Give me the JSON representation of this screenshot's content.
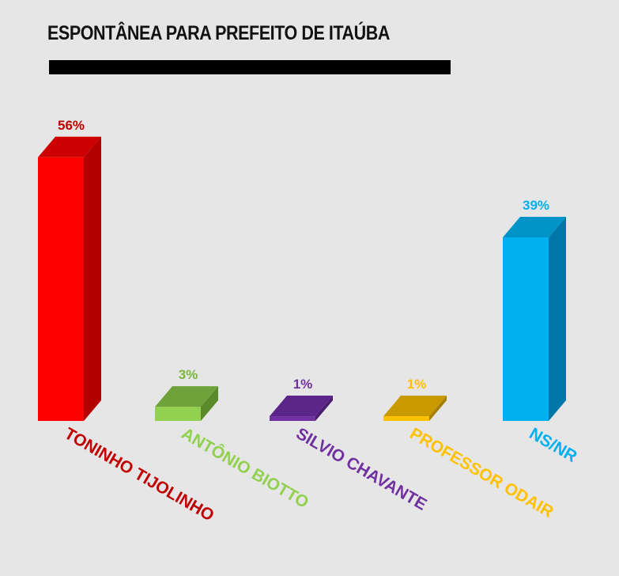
{
  "chart_data": {
    "type": "bar",
    "title": "ESPONTÂNEA PARA PREFEITO DE ITAÚBA",
    "categories": [
      "TONINHO TIJOLINHO",
      "ANTÔNIO BIOTTO",
      "SILVIO CHAVANTE",
      "PROFESSOR ODAIR",
      "NS/NR"
    ],
    "values": [
      56,
      3,
      1,
      1,
      39
    ],
    "value_labels": [
      "56%",
      "3%",
      "1%",
      "1%",
      "39%"
    ],
    "unit": "%",
    "ylim": [
      0,
      60
    ],
    "grid": false,
    "legend": "none",
    "colors": [
      {
        "front": "#ff0000",
        "side": "#b30000",
        "top": "#cc0000",
        "label": "#c00000",
        "value": "#c00000"
      },
      {
        "front": "#92d050",
        "side": "#5a8a2a",
        "top": "#6fa23a",
        "label": "#92d050",
        "value": "#7cb342"
      },
      {
        "front": "#7030a0",
        "side": "#4a1c70",
        "top": "#5b2589",
        "label": "#7030a0",
        "value": "#7030a0"
      },
      {
        "front": "#ffc000",
        "side": "#a87e00",
        "top": "#c89a00",
        "label": "#ffc000",
        "value": "#ffc000"
      },
      {
        "front": "#00b0f0",
        "side": "#0077a8",
        "top": "#0093c8",
        "label": "#00b0f0",
        "value": "#00b0f0"
      }
    ]
  }
}
